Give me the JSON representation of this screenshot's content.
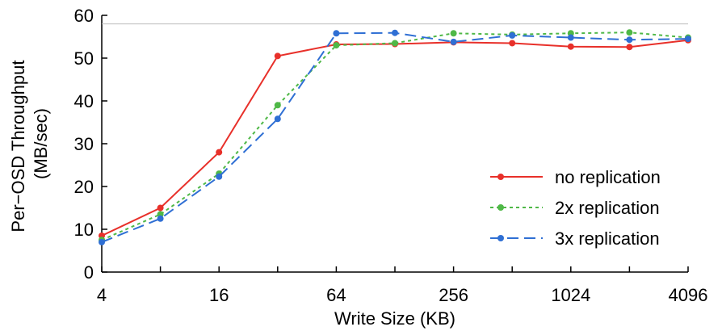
{
  "chart_data": {
    "type": "line",
    "xlabel": "Write Size (KB)",
    "ylabel_lines": [
      "Per−OSD Throughput",
      "(MB/sec)"
    ],
    "x_scale": "log2",
    "xlim": [
      4,
      4096
    ],
    "ylim": [
      0,
      60
    ],
    "x": [
      4,
      8,
      16,
      32,
      64,
      128,
      256,
      512,
      1024,
      2048,
      4096
    ],
    "x_tick_labels": [
      {
        "x": 4,
        "label": "4"
      },
      {
        "x": 16,
        "label": "16"
      },
      {
        "x": 64,
        "label": "64"
      },
      {
        "x": 256,
        "label": "256"
      },
      {
        "x": 1024,
        "label": "1024"
      },
      {
        "x": 4096,
        "label": "4096"
      }
    ],
    "y_ticks": [
      0,
      10,
      20,
      30,
      40,
      50,
      60
    ],
    "reference_line": {
      "y": 58,
      "color": "#bbbbbb"
    },
    "legend_position": "bottom-right",
    "series": [
      {
        "name": "no replication",
        "color": "#e8302a",
        "dash": "solid",
        "values": [
          8.5,
          15.0,
          28.0,
          50.5,
          53.2,
          53.3,
          53.7,
          53.5,
          52.7,
          52.6,
          54.2
        ]
      },
      {
        "name": "2x replication",
        "color": "#4fb847",
        "dash": "dotted",
        "values": [
          7.5,
          13.5,
          23.0,
          39.0,
          53.0,
          53.5,
          55.8,
          55.5,
          55.8,
          56.0,
          54.8
        ]
      },
      {
        "name": "3x replication",
        "color": "#2f6fd4",
        "dash": "dashed",
        "values": [
          7.0,
          12.5,
          22.3,
          35.8,
          55.8,
          55.9,
          53.8,
          55.3,
          54.8,
          54.3,
          54.5
        ]
      }
    ]
  }
}
